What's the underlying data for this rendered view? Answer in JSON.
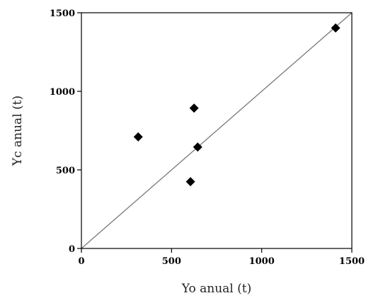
{
  "chart_data": {
    "type": "scatter",
    "xlabel": "Yo anual (t)",
    "ylabel": "Yc anual (t)",
    "xlim": [
      0,
      1500
    ],
    "ylim": [
      0,
      1500
    ],
    "xticks": [
      0,
      500,
      1000,
      1500
    ],
    "yticks": [
      0,
      500,
      1000,
      1500
    ],
    "grid": false,
    "marker": "diamond",
    "colors": {
      "points": "#000000",
      "line": "#7a7a7a",
      "axes": "#000000"
    },
    "series": [
      {
        "values": [
          {
            "x": 315,
            "y": 710
          },
          {
            "x": 605,
            "y": 425
          },
          {
            "x": 625,
            "y": 893
          },
          {
            "x": 645,
            "y": 645
          },
          {
            "x": 1410,
            "y": 1403
          }
        ]
      }
    ],
    "reference_line": {
      "x": [
        0,
        1500
      ],
      "y": [
        0,
        1500
      ]
    }
  }
}
